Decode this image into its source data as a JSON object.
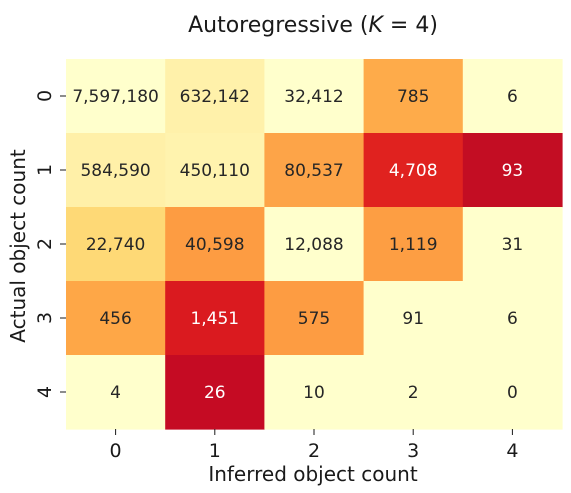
{
  "chart_data": {
    "type": "heatmap",
    "title": "Autoregressive (K = 4)",
    "title_parts": {
      "prefix": "Autoregressive (",
      "var": "K",
      "eq": " = 4)"
    },
    "xlabel": "Inferred object count",
    "ylabel": "Actual object count",
    "x_categories": [
      "0",
      "1",
      "2",
      "3",
      "4"
    ],
    "y_categories": [
      "0",
      "1",
      "2",
      "3",
      "4"
    ],
    "values": [
      [
        7597180,
        632142,
        32412,
        785,
        6
      ],
      [
        584590,
        450110,
        80537,
        4708,
        93
      ],
      [
        22740,
        40598,
        12088,
        1119,
        31
      ],
      [
        456,
        1451,
        575,
        91,
        6
      ],
      [
        4,
        26,
        10,
        2,
        0
      ]
    ],
    "cell_labels": [
      [
        "7,597,180",
        "632,142",
        "32,412",
        "785",
        "6"
      ],
      [
        "584,590",
        "450,110",
        "80,537",
        "4,708",
        "93"
      ],
      [
        "22,740",
        "40,598",
        "12,088",
        "1,119",
        "31"
      ],
      [
        "456",
        "1,451",
        "575",
        "91",
        "6"
      ],
      [
        "4",
        "26",
        "10",
        "2",
        "0"
      ]
    ],
    "cell_colors": [
      [
        "#ffffcc",
        "#fff1aa",
        "#ffffcc",
        "#feab4a",
        "#ffffcc"
      ],
      [
        "#fff0a8",
        "#fff3ae",
        "#fda448",
        "#e0221f",
        "#c30d23"
      ],
      [
        "#fed976",
        "#fd9c42",
        "#ffffcc",
        "#fd9e43",
        "#ffffcc"
      ],
      [
        "#fea747",
        "#da1a1f",
        "#fd9c42",
        "#ffffcc",
        "#ffffcc"
      ],
      [
        "#ffffcc",
        "#c50b23",
        "#ffffcc",
        "#ffffcc",
        "#ffffcc"
      ]
    ],
    "colormap": "YlOrRd",
    "text_color_dark": "#262626",
    "text_color_light": "#ffffff",
    "grid": false,
    "colorbar": false
  }
}
